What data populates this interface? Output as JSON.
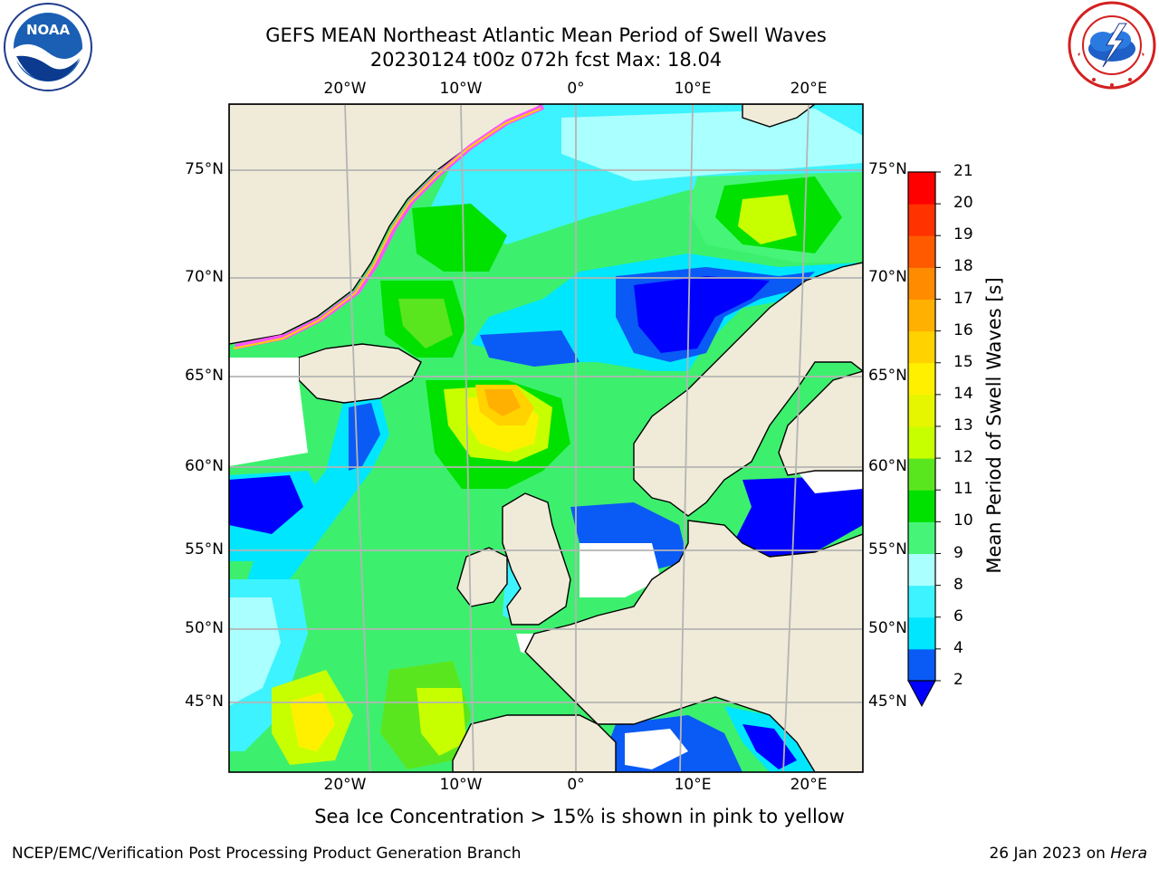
{
  "title": {
    "line1": "GEFS MEAN Northeast Atlantic Mean Period of Swell Waves",
    "line2": "20230124 t00z 072h fcst   Max: 18.04"
  },
  "logos": {
    "left": {
      "name": "NOAA",
      "text": "NOAA",
      "ring": "NATIONAL OCEANIC AND ATMOSPHERIC ADMINISTRATION · U.S. DEPARTMENT OF COMMERCE"
    },
    "right": {
      "name": "National Weather Service",
      "ring": "NATIONAL WEATHER SERVICE"
    }
  },
  "map": {
    "lon_ticks": [
      "20°W",
      "10°W",
      "0°",
      "10°E",
      "20°E"
    ],
    "lat_ticks": [
      "75°N",
      "70°N",
      "65°N",
      "60°N",
      "55°N",
      "50°N",
      "45°N"
    ],
    "colors": {
      "land": "#efebd8",
      "ocean_default": "#3cf06e",
      "grid": "#b4b4b4",
      "coast": "#000000"
    }
  },
  "colorbar": {
    "label": "Mean Period of Swell Waves [s]",
    "ticks": [
      "21",
      "20",
      "19",
      "18",
      "17",
      "16",
      "15",
      "14",
      "13",
      "12",
      "11",
      "10",
      "9",
      "8",
      "6",
      "4",
      "2"
    ],
    "colors_bottom_to_top": [
      "#0a5af5",
      "#00e6ff",
      "#3cf3ff",
      "#aaffff",
      "#46f578",
      "#00e100",
      "#5ae61e",
      "#c8ff00",
      "#e6f500",
      "#fff000",
      "#ffd200",
      "#ffb000",
      "#ff8c00",
      "#ff5a00",
      "#ff3200",
      "#ff0000"
    ],
    "extend_color": "#0000ff"
  },
  "caption": "Sea Ice Concentration > 15% is shown in pink to yellow",
  "footer": {
    "credit": "NCEP/EMC/Verification Post Processing Product Generation Branch",
    "date": "26 Jan 2023 on",
    "host": "Hera"
  }
}
